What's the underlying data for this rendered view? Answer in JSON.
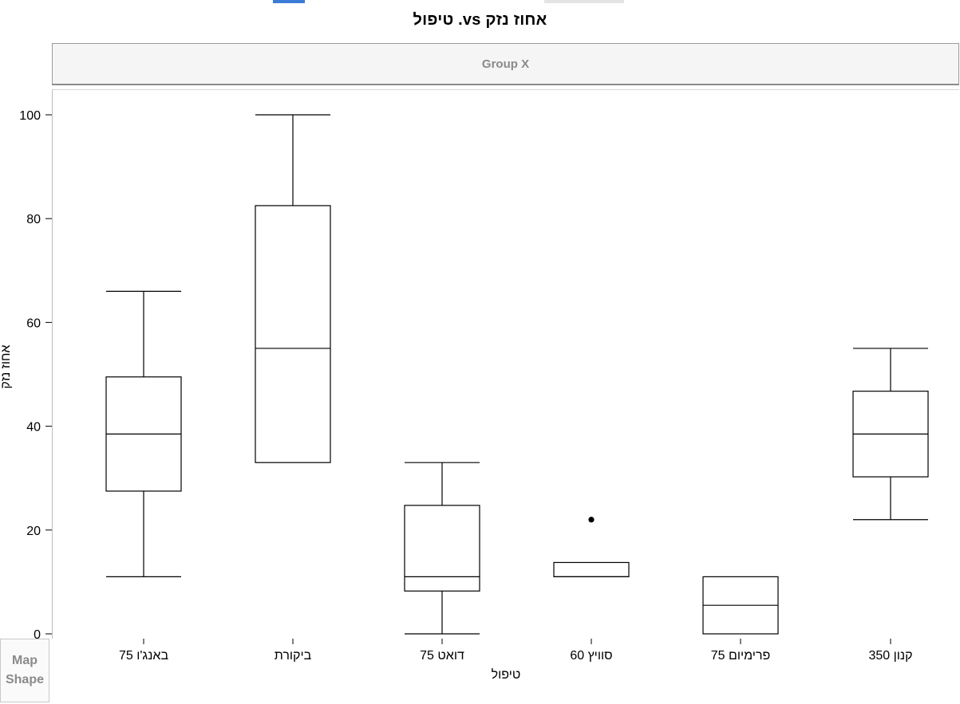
{
  "title": "טיפול .vs אחוז נזק",
  "group_header": "Group X",
  "map_shape": {
    "line1": "Map",
    "line2": "Shape"
  },
  "chart_data": {
    "type": "box",
    "xlabel": "טיפול",
    "ylabel": "אחוז נזק",
    "ylim": [
      0,
      100
    ],
    "yticks": [
      0,
      20,
      40,
      60,
      80,
      100
    ],
    "categories": [
      "באנג'ו 75",
      "ביקורת",
      "דואט 75",
      "סוויץ 60",
      "פרימיום 75",
      "קנון 350"
    ],
    "boxes": [
      {
        "category": "באנג'ו 75",
        "min": 11,
        "q1": 27.5,
        "median": 38.5,
        "q3": 49.5,
        "max": 66,
        "outliers": []
      },
      {
        "category": "ביקורת",
        "min": 33,
        "q1": 33,
        "median": 55,
        "q3": 82.5,
        "max": 100,
        "outliers": []
      },
      {
        "category": "דואט 75",
        "min": 0,
        "q1": 8.25,
        "median": 11,
        "q3": 24.75,
        "max": 33,
        "outliers": []
      },
      {
        "category": "סוויץ 60",
        "min": 11,
        "q1": 11,
        "median": 11,
        "q3": 13.75,
        "max": 13.75,
        "outliers": [
          22
        ]
      },
      {
        "category": "פרימיום 75",
        "min": 0,
        "q1": 0,
        "median": 5.5,
        "q3": 11,
        "max": 11,
        "outliers": []
      },
      {
        "category": "קנון 350",
        "min": 22,
        "q1": 30.25,
        "median": 38.5,
        "q3": 46.75,
        "max": 55,
        "outliers": []
      }
    ]
  }
}
